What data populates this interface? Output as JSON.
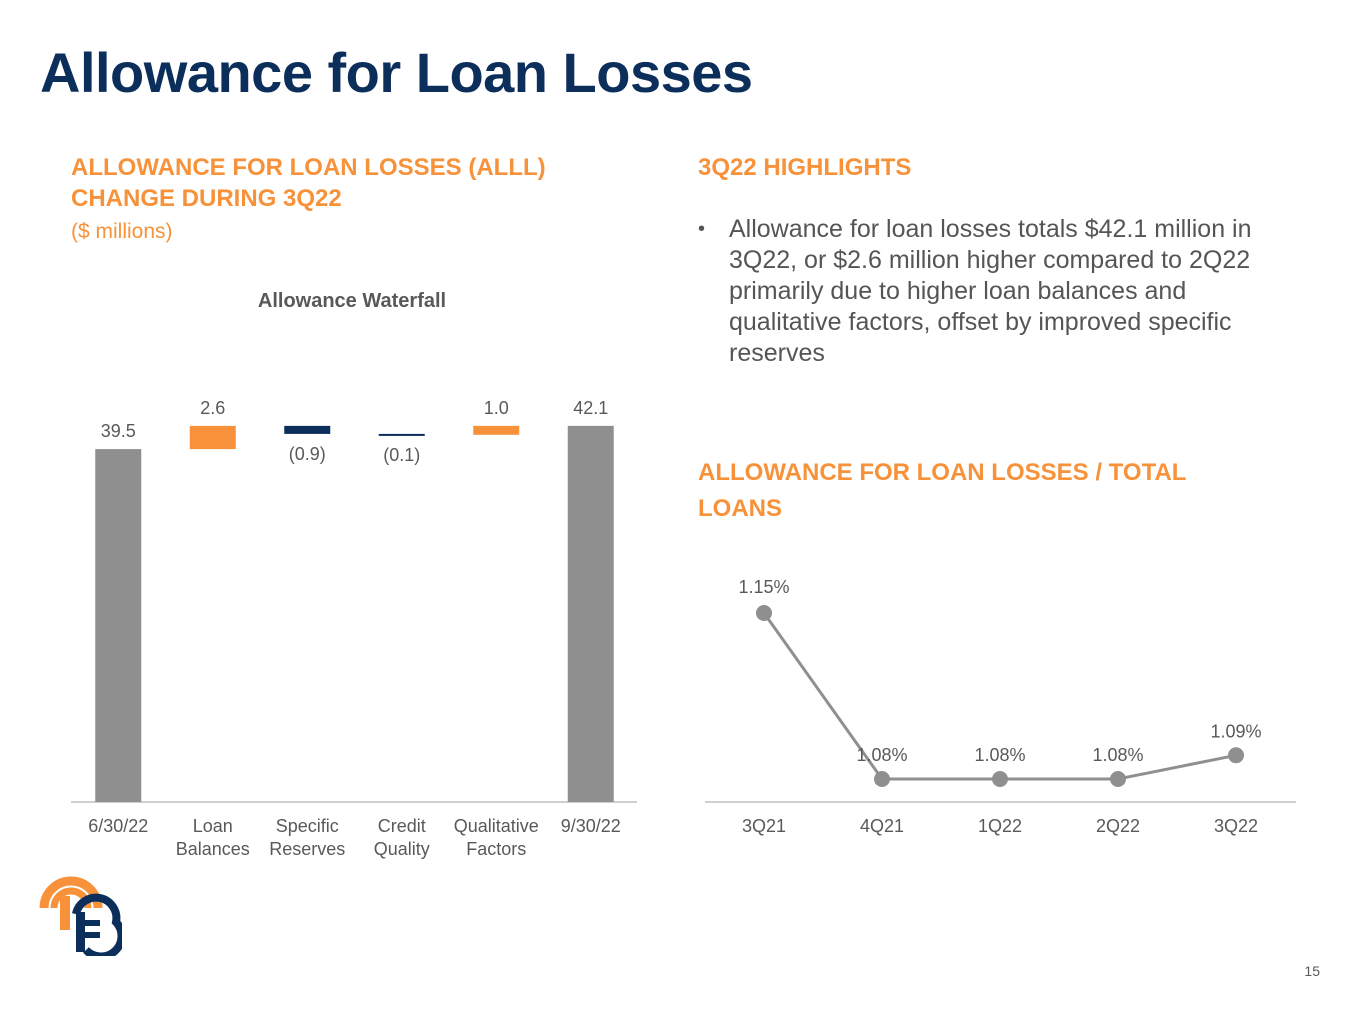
{
  "slide": {
    "title": "Allowance for Loan Losses",
    "page_number": "15"
  },
  "left": {
    "heading": "ALLOWANCE FOR LOAN LOSSES (ALLL) CHANGE DURING 3Q22",
    "units": "($ millions)"
  },
  "right": {
    "highlights_heading": "3Q22 HIGHLIGHTS",
    "bullets": [
      "Allowance for loan losses totals $42.1 million in 3Q22, or $2.6 million higher compared to 2Q22 primarily due to higher loan balances and qualitative factors, offset by improved specific reserves"
    ],
    "ratio_heading": "ALLOWANCE FOR LOAN LOSSES / TOTAL LOANS"
  },
  "colors": {
    "title": "#0b2e5a",
    "accent_orange": "#f7923a",
    "bar_gray": "#8f8f8f",
    "bar_navy": "#0b2e5a",
    "text_gray": "#595959"
  },
  "chart_data": [
    {
      "type": "bar",
      "subtype": "waterfall",
      "title": "Allowance Waterfall",
      "categories": [
        [
          "6/30/22"
        ],
        [
          "Loan",
          "Balances"
        ],
        [
          "Specific",
          "Reserves"
        ],
        [
          "Credit",
          "Quality"
        ],
        [
          "Qualitative",
          "Factors"
        ],
        [
          "9/30/22"
        ]
      ],
      "values": [
        39.5,
        2.6,
        -0.9,
        -0.1,
        1.0,
        42.1
      ],
      "labels": [
        "39.5",
        "2.6",
        "(0.9)",
        "(0.1)",
        "1.0",
        "42.1"
      ],
      "kinds": [
        "total",
        "increase",
        "decrease",
        "decrease",
        "increase",
        "total"
      ],
      "ylim": [
        0,
        45
      ],
      "grid": false,
      "legend": "none"
    },
    {
      "type": "line",
      "categories": [
        "3Q21",
        "4Q21",
        "1Q22",
        "2Q22",
        "3Q22"
      ],
      "values": [
        1.15,
        1.08,
        1.08,
        1.08,
        1.09
      ],
      "labels": [
        "1.15%",
        "1.08%",
        "1.08%",
        "1.08%",
        "1.09%"
      ],
      "ylim": [
        1.065,
        1.165
      ],
      "grid": false,
      "legend": "none"
    }
  ]
}
